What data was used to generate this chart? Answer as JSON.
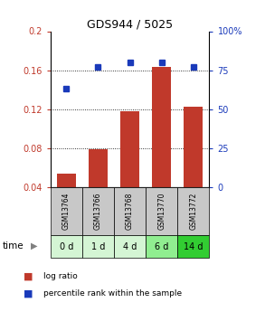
{
  "title": "GDS944 / 5025",
  "categories": [
    "GSM13764",
    "GSM13766",
    "GSM13768",
    "GSM13770",
    "GSM13772"
  ],
  "time_labels": [
    "0 d",
    "1 d",
    "4 d",
    "6 d",
    "14 d"
  ],
  "log_ratio": [
    0.054,
    0.079,
    0.118,
    0.163,
    0.123
  ],
  "percentile_rank": [
    0.63,
    0.77,
    0.8,
    0.8,
    0.77
  ],
  "ylim_left": [
    0.04,
    0.2
  ],
  "ylim_right": [
    0.0,
    1.0
  ],
  "yticks_left": [
    0.04,
    0.08,
    0.12,
    0.16,
    0.2
  ],
  "ytick_labels_left": [
    "0.04",
    "0.08",
    "0.12",
    "0.16",
    "0.2"
  ],
  "yticks_right": [
    0.0,
    0.25,
    0.5,
    0.75,
    1.0
  ],
  "ytick_labels_right": [
    "0",
    "25",
    "50",
    "75",
    "100%"
  ],
  "bar_color": "#c0392b",
  "dot_color": "#1a3aba",
  "gsm_bg_color": "#c8c8c8",
  "time_colors": [
    "#d4f5d4",
    "#d4f5d4",
    "#d4f5d4",
    "#90ee90",
    "#32cd32"
  ],
  "label_color_left": "#c0392b",
  "label_color_right": "#1a3aba",
  "legend_bar_label": "log ratio",
  "legend_dot_label": "percentile rank within the sample",
  "gridlines_at": [
    0.08,
    0.12,
    0.16
  ]
}
